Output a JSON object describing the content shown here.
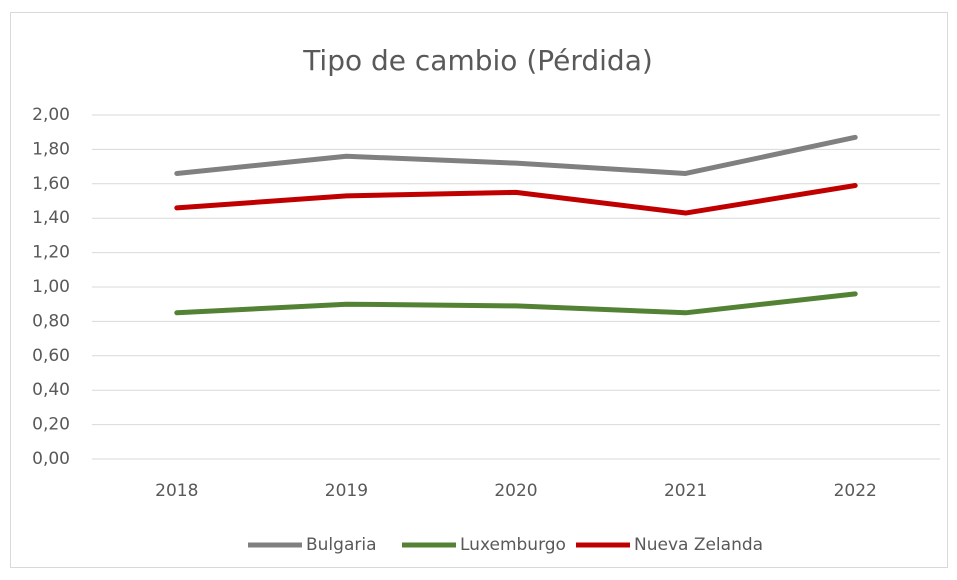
{
  "chart_data": {
    "type": "line",
    "title": "Tipo de cambio (Pérdida)",
    "categories": [
      "2018",
      "2019",
      "2020",
      "2021",
      "2022"
    ],
    "series": [
      {
        "name": "Bulgaria",
        "color": "#808080",
        "values": [
          1.66,
          1.76,
          1.72,
          1.66,
          1.87
        ]
      },
      {
        "name": "Luxemburgo",
        "color": "#548235",
        "values": [
          0.85,
          0.9,
          0.89,
          0.85,
          0.96
        ]
      },
      {
        "name": "Nueva Zelanda",
        "color": "#c00000",
        "values": [
          1.46,
          1.53,
          1.55,
          1.43,
          1.59
        ]
      }
    ],
    "ylim": [
      0,
      2
    ],
    "yticks": [
      {
        "value": 0,
        "label": "0,00"
      },
      {
        "value": 0.2,
        "label": "0,20"
      },
      {
        "value": 0.4,
        "label": "0,40"
      },
      {
        "value": 0.6,
        "label": "0,60"
      },
      {
        "value": 0.8,
        "label": "0,80"
      },
      {
        "value": 1,
        "label": "1,00"
      },
      {
        "value": 1.2,
        "label": "1,20"
      },
      {
        "value": 1.4,
        "label": "1,40"
      },
      {
        "value": 1.6,
        "label": "1,60"
      },
      {
        "value": 1.8,
        "label": "1,80"
      },
      {
        "value": 2,
        "label": "2,00"
      }
    ],
    "grid": true,
    "legend": "bottom"
  }
}
